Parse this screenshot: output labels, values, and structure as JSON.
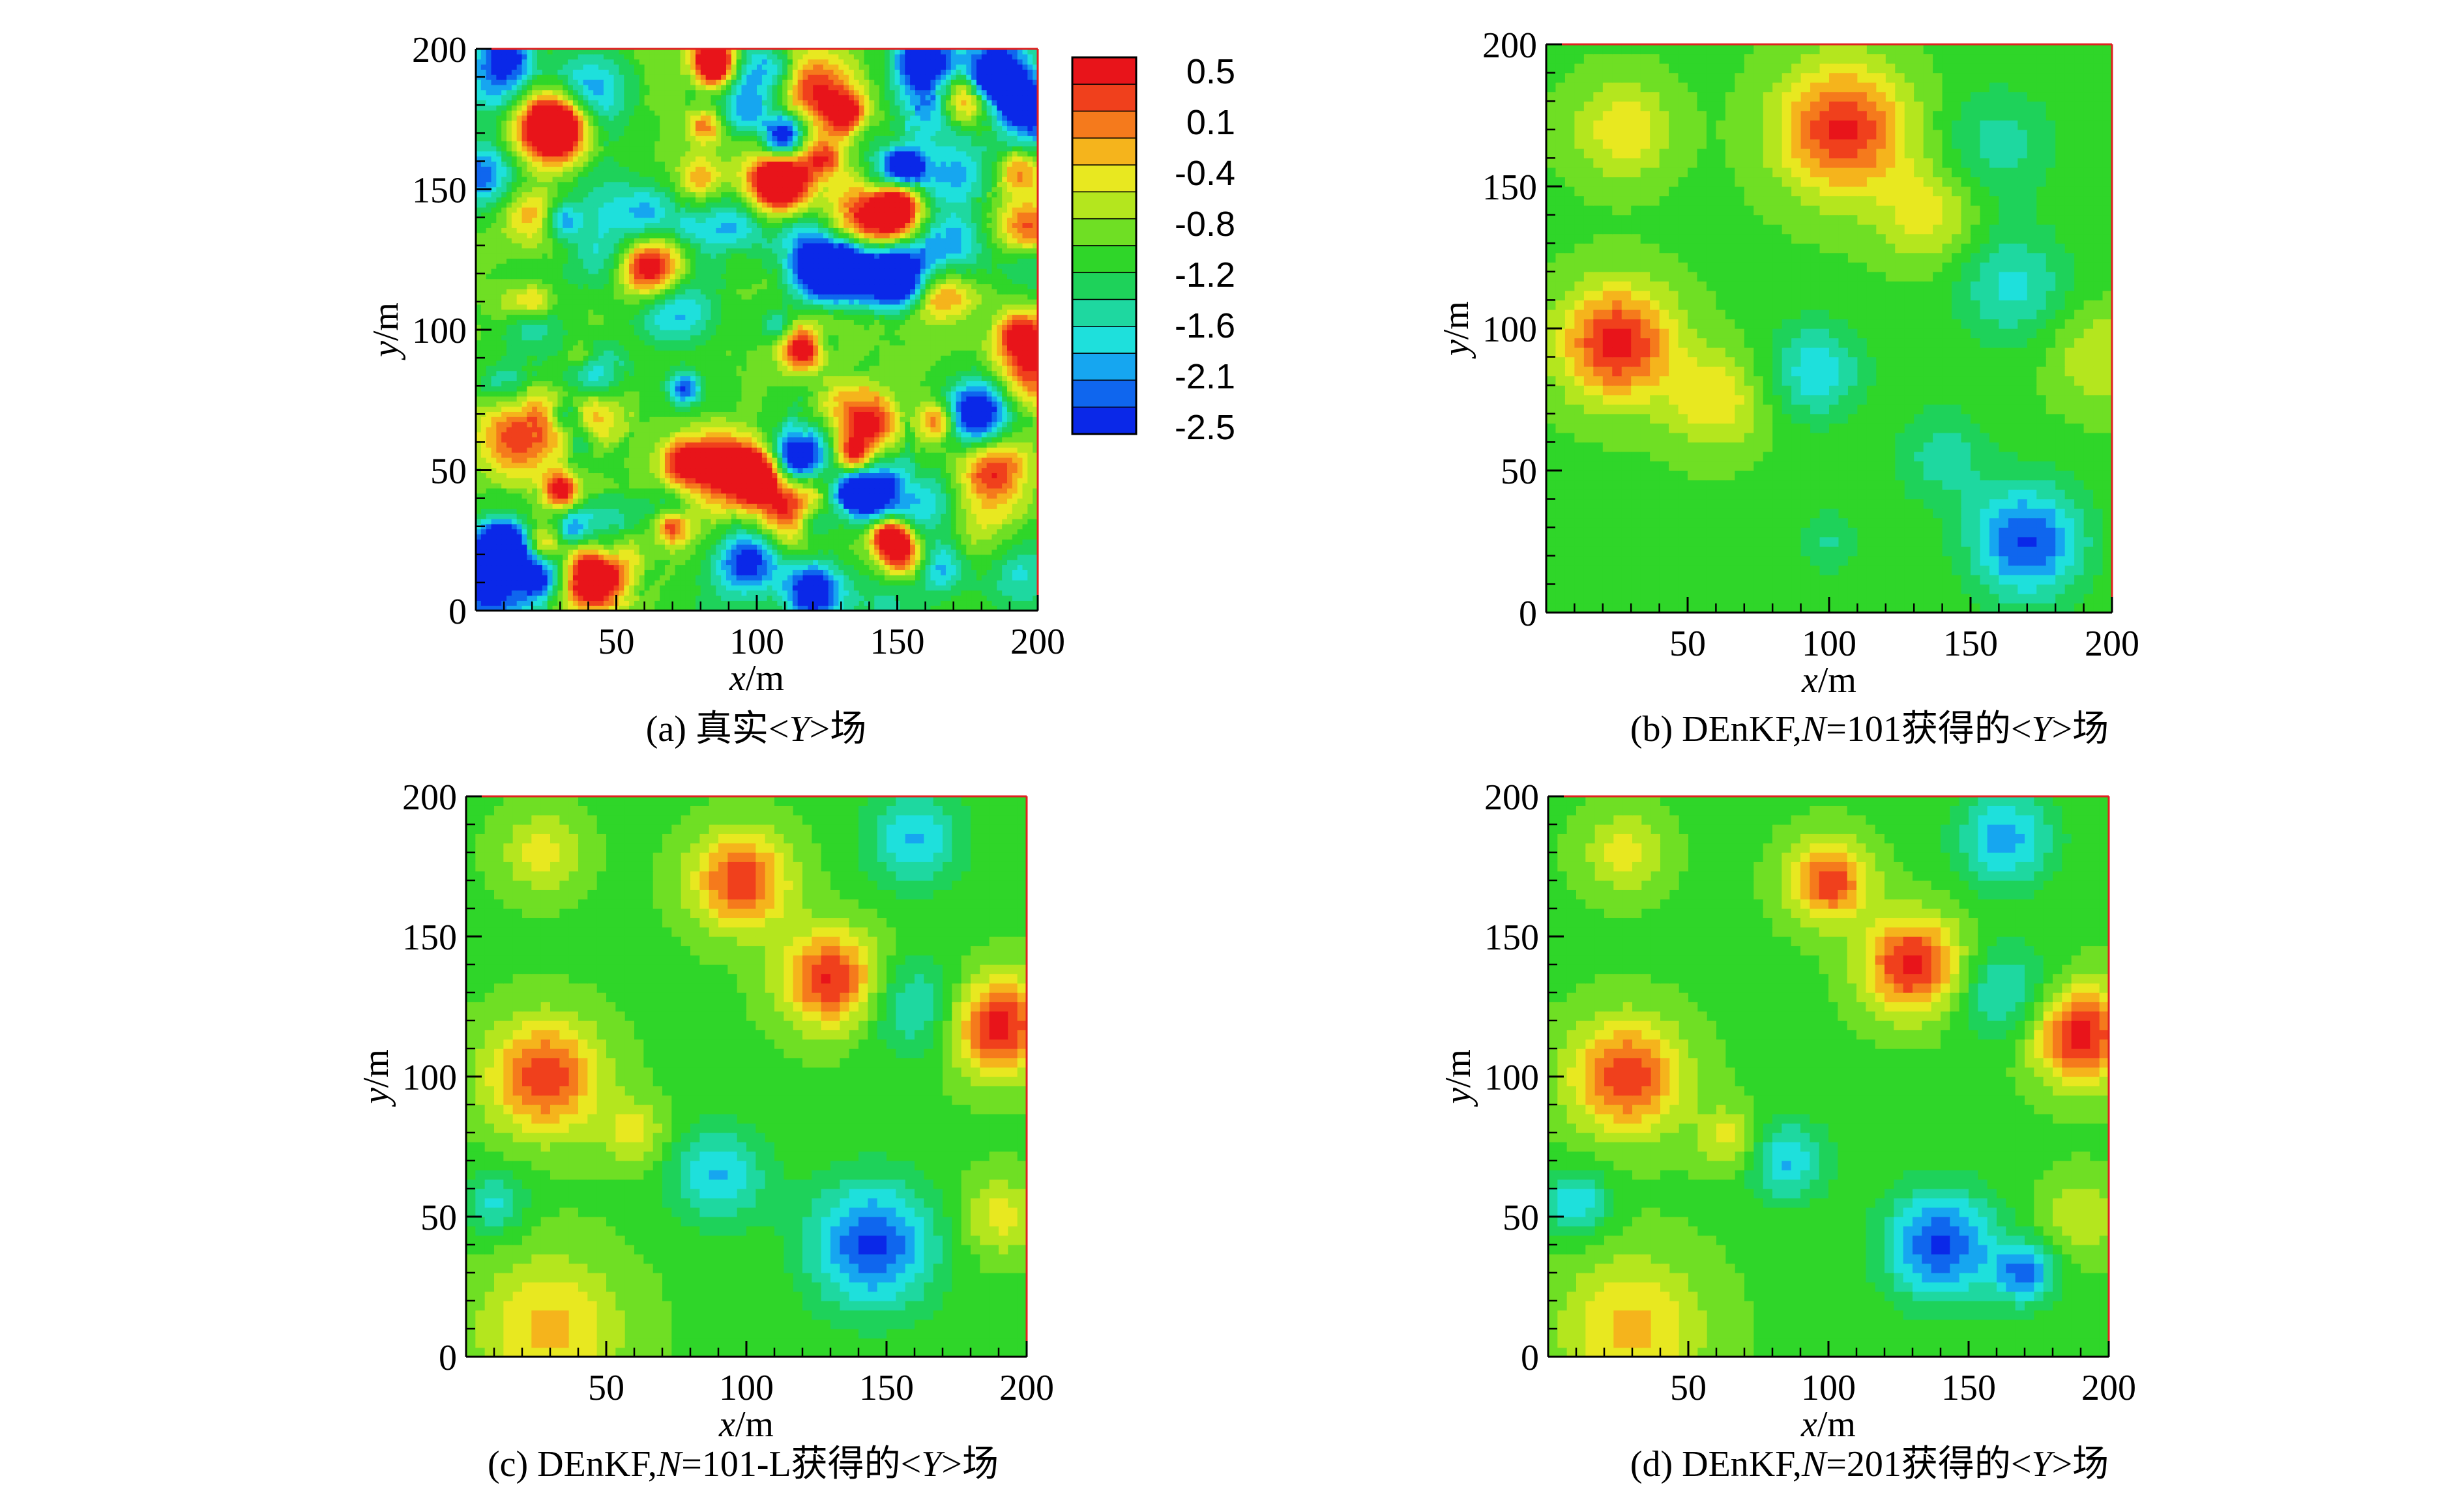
{
  "colorbar": {
    "labels": [
      "0.5",
      "0.1",
      "-0.4",
      "-0.8",
      "-1.2",
      "-1.6",
      "-2.1",
      "-2.5"
    ],
    "colors": [
      "#e8141a",
      "#f0401c",
      "#f57a1c",
      "#f5b41c",
      "#e8e820",
      "#b4e61e",
      "#6fdf24",
      "#2fd629",
      "#1ed25a",
      "#1ed8a0",
      "#1ee0dc",
      "#16a6f0",
      "#0f66ee",
      "#0a28e8"
    ]
  },
  "chart_data": [
    {
      "type": "heatmap",
      "panel": "a",
      "caption_prefix": "(a) 真实<",
      "caption_var": "Y",
      "caption_suffix": ">场",
      "xlabel_var": "x",
      "xlabel_unit": "/m",
      "ylabel_var": "y",
      "ylabel_unit": "/m",
      "xlim": [
        0,
        200
      ],
      "ylim": [
        0,
        200
      ],
      "x_ticks": [
        50,
        100,
        150,
        200
      ],
      "y_ticks": [
        0,
        50,
        100,
        150,
        200
      ],
      "field_style": "fine",
      "features": []
    },
    {
      "type": "heatmap",
      "panel": "b",
      "caption_prefix": "(b) DEnKF,",
      "caption_N": "N",
      "caption_mid": "=101获得的<",
      "caption_var": "Y",
      "caption_suffix": ">场",
      "xlabel_var": "x",
      "xlabel_unit": "/m",
      "ylabel_var": "y",
      "ylabel_unit": "/m",
      "xlim": [
        0,
        200
      ],
      "ylim": [
        0,
        200
      ],
      "x_ticks": [
        50,
        100,
        150,
        200
      ],
      "y_ticks": [
        0,
        50,
        100,
        150,
        200
      ],
      "field_style": "smooth",
      "features": [
        {
          "x": 25,
          "y": 95,
          "v": 0.6,
          "r": 14
        },
        {
          "x": 60,
          "y": 75,
          "v": -0.3,
          "r": 12
        },
        {
          "x": 27,
          "y": 170,
          "v": -0.3,
          "r": 12
        },
        {
          "x": 105,
          "y": 170,
          "v": 0.5,
          "r": 16
        },
        {
          "x": 135,
          "y": 140,
          "v": -0.4,
          "r": 12
        },
        {
          "x": 165,
          "y": 115,
          "v": -1.8,
          "r": 14
        },
        {
          "x": 160,
          "y": 165,
          "v": -1.6,
          "r": 14
        },
        {
          "x": 95,
          "y": 85,
          "v": -1.9,
          "r": 12
        },
        {
          "x": 140,
          "y": 55,
          "v": -1.6,
          "r": 12
        },
        {
          "x": 170,
          "y": 25,
          "v": -2.5,
          "r": 14
        },
        {
          "x": 195,
          "y": 90,
          "v": -0.5,
          "r": 12
        },
        {
          "x": 100,
          "y": 25,
          "v": -1.5,
          "r": 8
        }
      ]
    },
    {
      "type": "heatmap",
      "panel": "c",
      "caption_prefix": "(c) DEnKF,",
      "caption_N": "N",
      "caption_mid": "=101-L获得的<",
      "caption_var": "Y",
      "caption_suffix": ">场",
      "xlabel_var": "x",
      "xlabel_unit": "/m",
      "ylabel_var": "y",
      "ylabel_unit": "/m",
      "xlim": [
        0,
        200
      ],
      "ylim": [
        0,
        200
      ],
      "x_ticks": [
        50,
        100,
        150,
        200
      ],
      "y_ticks": [
        0,
        50,
        100,
        150,
        200
      ],
      "field_style": "smooth",
      "features": [
        {
          "x": 28,
          "y": 100,
          "v": 0.4,
          "r": 14
        },
        {
          "x": 27,
          "y": 180,
          "v": -0.4,
          "r": 10
        },
        {
          "x": 98,
          "y": 170,
          "v": 0.4,
          "r": 12
        },
        {
          "x": 130,
          "y": 135,
          "v": 0.5,
          "r": 12
        },
        {
          "x": 190,
          "y": 118,
          "v": 0.6,
          "r": 12
        },
        {
          "x": 160,
          "y": 185,
          "v": -2.0,
          "r": 12
        },
        {
          "x": 160,
          "y": 125,
          "v": -1.8,
          "r": 12
        },
        {
          "x": 90,
          "y": 65,
          "v": -2.0,
          "r": 12
        },
        {
          "x": 145,
          "y": 40,
          "v": -2.5,
          "r": 16
        },
        {
          "x": 10,
          "y": 55,
          "v": -1.8,
          "r": 8
        },
        {
          "x": 30,
          "y": 10,
          "v": -0.2,
          "r": 18
        },
        {
          "x": 60,
          "y": 80,
          "v": -0.4,
          "r": 8
        },
        {
          "x": 190,
          "y": 50,
          "v": -0.4,
          "r": 10
        }
      ]
    },
    {
      "type": "heatmap",
      "panel": "d",
      "caption_prefix": "(d) DEnKF,",
      "caption_N": "N",
      "caption_mid": "=201获得的<",
      "caption_var": "Y",
      "caption_suffix": ">场",
      "xlabel_var": "x",
      "xlabel_unit": "/m",
      "ylabel_var": "y",
      "ylabel_unit": "/m",
      "xlim": [
        0,
        200
      ],
      "ylim": [
        0,
        200
      ],
      "x_ticks": [
        50,
        100,
        150,
        200
      ],
      "y_ticks": [
        0,
        50,
        100,
        150,
        200
      ],
      "field_style": "smooth",
      "features": [
        {
          "x": 28,
          "y": 100,
          "v": 0.4,
          "r": 14
        },
        {
          "x": 27,
          "y": 180,
          "v": -0.4,
          "r": 10
        },
        {
          "x": 100,
          "y": 170,
          "v": 0.4,
          "r": 10
        },
        {
          "x": 130,
          "y": 140,
          "v": 0.6,
          "r": 12
        },
        {
          "x": 190,
          "y": 115,
          "v": 0.6,
          "r": 12
        },
        {
          "x": 163,
          "y": 185,
          "v": -2.1,
          "r": 12
        },
        {
          "x": 163,
          "y": 130,
          "v": -1.8,
          "r": 12
        },
        {
          "x": 85,
          "y": 70,
          "v": -2.0,
          "r": 10
        },
        {
          "x": 140,
          "y": 40,
          "v": -2.5,
          "r": 14
        },
        {
          "x": 170,
          "y": 30,
          "v": -2.2,
          "r": 8
        },
        {
          "x": 10,
          "y": 55,
          "v": -2.0,
          "r": 8
        },
        {
          "x": 30,
          "y": 10,
          "v": -0.2,
          "r": 18
        },
        {
          "x": 65,
          "y": 78,
          "v": -0.4,
          "r": 8
        },
        {
          "x": 190,
          "y": 50,
          "v": -0.5,
          "r": 10
        }
      ]
    }
  ]
}
